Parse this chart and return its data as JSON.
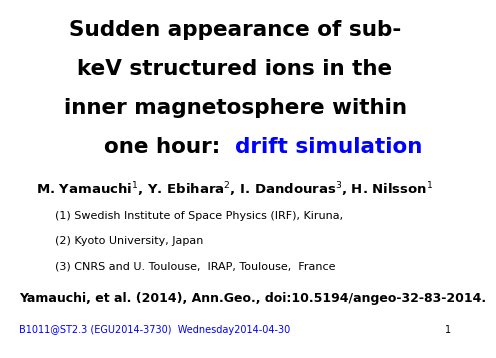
{
  "background_color": "#ffffff",
  "title_line1": "Sudden appearance of sub-",
  "title_line2": "keV structured ions in the",
  "title_line3": "inner magnetosphere within",
  "title_line4_black": "one hour:  ",
  "title_line4_blue": "drift simulation",
  "title_fontsize": 15.5,
  "title_color_black": "#000000",
  "title_color_blue": "#0000ff",
  "authors_tex": "M. Yamauchi$^1$, Y. Ebihara$^2$, I. Dandouras$^3$, H. Nilsson$^1$",
  "authors_fontsize": 9.5,
  "affil1": "(1) Swedish Institute of Space Physics (IRF), Kiruna,",
  "affil2": "(2) Kyoto University, Japan",
  "affil3": "(3) CNRS and U. Toulouse,  IRAP, Toulouse,  France",
  "affil_fontsize": 8.0,
  "citation": "Yamauchi, et al. (2014), Ann.Geo., doi:10.5194/angeo-32-83-2014.",
  "citation_fontsize": 9.0,
  "footer_blue": "B1011@ST2.3 (EGU2014-3730)  Wednesday2014-04-30",
  "footer_fontsize": 7.0,
  "footer_color": "#0000ff",
  "page_number": "1",
  "page_number_color": "#000000"
}
